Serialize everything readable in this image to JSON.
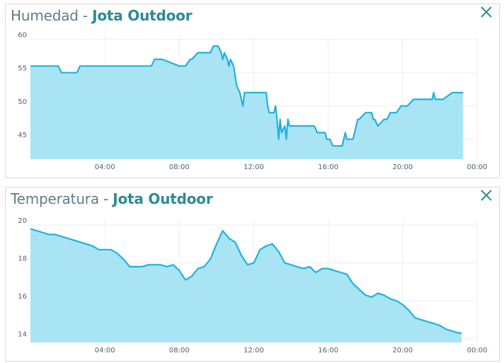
{
  "colors": {
    "line": "#1fb3de",
    "fill": "#a9e4f4",
    "title": "#5f7d88",
    "station": "#2e8a95",
    "grid": "#eeeeee"
  },
  "panels": [
    {
      "title": "Humedad",
      "separator": " - ",
      "station": "Jota Outdoor",
      "close_icon": "close-icon"
    },
    {
      "title": "Temperatura",
      "separator": " - ",
      "station": "Jota Outdoor",
      "close_icon": "close-icon"
    }
  ],
  "chart_data": [
    {
      "type": "area",
      "title": "Humedad - Jota Outdoor",
      "x_ticks": [
        "04:00",
        "08:00",
        "12:00",
        "16:00",
        "20:00",
        "00:00"
      ],
      "x_range": [
        "00:00",
        "24:00"
      ],
      "y_ticks": [
        45,
        50,
        55,
        60
      ],
      "ylim": [
        42,
        60.5
      ],
      "grid": true,
      "x": [
        "00:00",
        "01:30",
        "01:40",
        "02:30",
        "02:40",
        "05:00",
        "05:10",
        "06:30",
        "06:40",
        "07:00",
        "07:05",
        "08:00",
        "08:10",
        "08:20",
        "08:35",
        "08:40",
        "09:00",
        "09:05",
        "09:30",
        "09:40",
        "09:50",
        "10:05",
        "10:15",
        "10:20",
        "10:25",
        "10:35",
        "10:40",
        "10:45",
        "10:55",
        "11:05",
        "11:15",
        "11:20",
        "11:25",
        "11:30",
        "11:35",
        "11:40",
        "11:45",
        "12:00",
        "12:15",
        "12:40",
        "12:45",
        "12:50",
        "12:55",
        "13:05",
        "13:10",
        "13:15",
        "13:20",
        "13:25",
        "13:30",
        "13:40",
        "13:45",
        "13:50",
        "13:55",
        "14:00",
        "14:10",
        "15:15",
        "15:25",
        "15:30",
        "15:40",
        "15:50",
        "15:55",
        "16:05",
        "16:15",
        "16:35",
        "16:45",
        "16:50",
        "16:55",
        "17:00",
        "17:05",
        "17:15",
        "17:20",
        "17:25",
        "17:35",
        "17:40",
        "18:00",
        "18:05",
        "18:20",
        "18:25",
        "18:30",
        "18:40",
        "19:00",
        "19:05",
        "19:10",
        "19:20",
        "19:35",
        "19:40",
        "19:55",
        "20:10",
        "20:15",
        "20:35",
        "20:40",
        "20:55",
        "21:00",
        "21:35",
        "21:40",
        "21:45",
        "21:50",
        "22:05",
        "22:10",
        "22:40",
        "23:00",
        "23:15"
      ],
      "values": [
        56,
        56,
        55,
        55,
        56,
        56,
        56,
        56,
        57,
        57,
        57,
        56,
        56,
        56,
        57,
        57,
        58,
        58,
        58,
        58,
        59,
        59,
        58,
        57,
        58,
        57,
        56,
        57,
        56,
        53,
        52,
        51,
        50,
        52,
        52,
        52,
        52,
        52,
        52,
        52,
        50,
        49,
        49,
        49,
        50,
        48,
        45,
        48,
        46,
        47,
        45,
        48,
        47,
        47,
        47,
        47,
        46,
        46,
        46,
        46,
        45,
        45,
        44,
        44,
        44,
        45,
        46,
        45,
        45,
        45,
        45,
        46,
        48,
        48,
        49,
        49,
        49,
        48,
        48,
        47,
        48,
        48,
        48,
        49,
        49,
        49,
        50,
        50,
        50,
        51,
        51,
        51,
        51,
        51,
        52,
        51,
        51,
        51,
        51,
        52,
        52,
        52
      ]
    },
    {
      "type": "area",
      "title": "Temperatura - Jota Outdoor",
      "x_ticks": [
        "04:00",
        "08:00",
        "12:00",
        "16:00",
        "20:00",
        "00:00"
      ],
      "x_range": [
        "00:00",
        "24:00"
      ],
      "y_ticks": [
        14,
        16,
        18,
        20
      ],
      "ylim": [
        13.8,
        20.3
      ],
      "grid": true,
      "x": [
        "00:00",
        "00:20",
        "00:40",
        "01:00",
        "01:20",
        "01:40",
        "02:00",
        "02:20",
        "02:40",
        "03:00",
        "03:20",
        "03:40",
        "04:00",
        "04:20",
        "04:40",
        "05:00",
        "05:20",
        "05:40",
        "06:00",
        "06:20",
        "06:40",
        "07:00",
        "07:20",
        "07:40",
        "08:00",
        "08:20",
        "08:40",
        "09:00",
        "09:20",
        "09:40",
        "10:00",
        "10:20",
        "10:40",
        "11:00",
        "11:20",
        "11:40",
        "12:00",
        "12:20",
        "12:40",
        "13:00",
        "13:20",
        "13:40",
        "14:00",
        "14:20",
        "14:40",
        "15:00",
        "15:20",
        "15:40",
        "16:00",
        "16:20",
        "16:40",
        "17:00",
        "17:20",
        "17:40",
        "18:00",
        "18:20",
        "18:40",
        "19:00",
        "19:20",
        "19:40",
        "20:00",
        "20:20",
        "20:40",
        "21:00",
        "21:20",
        "21:40",
        "22:00",
        "22:20",
        "22:40",
        "23:00",
        "23:10"
      ],
      "values": [
        19.8,
        19.7,
        19.6,
        19.5,
        19.5,
        19.4,
        19.3,
        19.2,
        19.1,
        19.0,
        18.9,
        18.7,
        18.7,
        18.7,
        18.5,
        18.2,
        17.8,
        17.8,
        17.8,
        17.9,
        17.9,
        17.9,
        17.8,
        17.9,
        17.6,
        17.1,
        17.3,
        17.7,
        17.8,
        18.2,
        19.0,
        19.7,
        19.3,
        19.1,
        18.4,
        17.9,
        18.0,
        18.7,
        18.9,
        19.0,
        18.6,
        18.0,
        17.9,
        17.8,
        17.7,
        17.8,
        17.5,
        17.7,
        17.7,
        17.6,
        17.5,
        17.4,
        16.9,
        16.6,
        16.3,
        16.2,
        16.4,
        16.3,
        16.1,
        16.0,
        15.8,
        15.5,
        15.1,
        15.0,
        14.9,
        14.8,
        14.7,
        14.5,
        14.4,
        14.3,
        14.3
      ]
    }
  ]
}
